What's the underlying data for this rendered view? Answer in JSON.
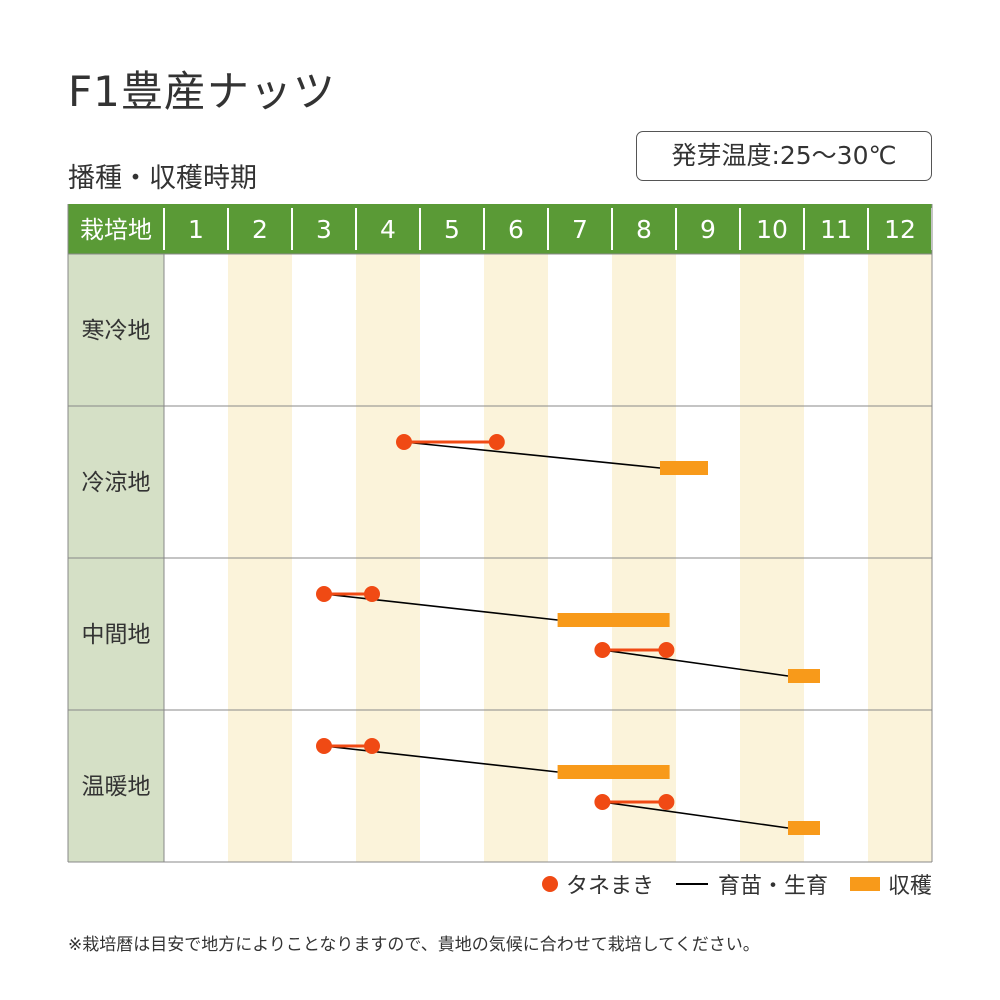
{
  "title": "F1豊産ナッツ",
  "subtitle": "播種・収穫時期",
  "temperature": "発芽温度:25〜30℃",
  "colors": {
    "header_green": "#5a9a36",
    "label_bg": "#d5e0c6",
    "stripe": "#fbf3da",
    "sow": "#f04a14",
    "harvest": "#f89a1a",
    "grow": "#000000",
    "grid": "#888888"
  },
  "legend": {
    "sow": "タネまき",
    "grow": "育苗・生育",
    "harvest": "収穫"
  },
  "note": "※栽培暦は目安で地方によりことなりますので、貴地の気候に合わせて栽培してください。",
  "chart_data": {
    "type": "gantt",
    "header_label": "栽培地",
    "months": [
      "1",
      "2",
      "3",
      "4",
      "5",
      "6",
      "7",
      "8",
      "9",
      "10",
      "11",
      "12"
    ],
    "regions": [
      {
        "name": "寒冷地",
        "schedules": []
      },
      {
        "name": "冷涼地",
        "schedules": [
          {
            "sow_start": 4.75,
            "sow_end": 6.2,
            "harvest_start": 8.75,
            "harvest_end": 9.5
          }
        ]
      },
      {
        "name": "中間地",
        "schedules": [
          {
            "sow_start": 3.5,
            "sow_end": 4.25,
            "harvest_start": 7.15,
            "harvest_end": 8.9
          },
          {
            "sow_start": 7.85,
            "sow_end": 8.85,
            "harvest_start": 10.75,
            "harvest_end": 11.25
          }
        ]
      },
      {
        "name": "温暖地",
        "schedules": [
          {
            "sow_start": 3.5,
            "sow_end": 4.25,
            "harvest_start": 7.15,
            "harvest_end": 8.9
          },
          {
            "sow_start": 7.85,
            "sow_end": 8.85,
            "harvest_start": 10.75,
            "harvest_end": 11.25
          }
        ]
      }
    ]
  }
}
